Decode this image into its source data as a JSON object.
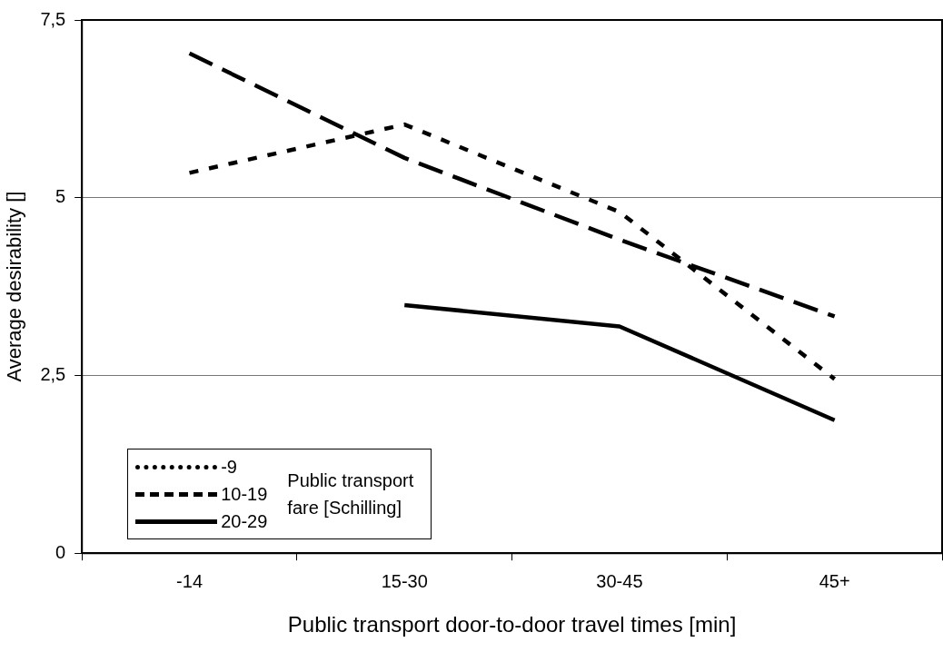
{
  "chart_data": {
    "type": "line",
    "xlabel": "Public transport door-to-door travel times [min]",
    "ylabel": "Average desirability []",
    "legend_title": "Public transport fare [Schilling]",
    "categories": [
      "-14",
      "15-30",
      "30-45",
      "45+"
    ],
    "series": [
      {
        "name": "-9",
        "color": "#000000",
        "line_style": "dotted",
        "values": [
          5.35,
          6.03,
          4.8,
          2.45
        ]
      },
      {
        "name": "10-19",
        "color": "#000000",
        "line_style": "dashed",
        "values": [
          7.03,
          5.56,
          4.41,
          3.33
        ]
      },
      {
        "name": "20-29",
        "color": "#000000",
        "line_style": "solid",
        "values": [
          null,
          3.49,
          3.19,
          1.87
        ]
      }
    ],
    "ylim": [
      0,
      7.5
    ],
    "yticks": [
      {
        "value": 0,
        "label": "0"
      },
      {
        "value": 2.5,
        "label": "2,5"
      },
      {
        "value": 5,
        "label": "5"
      },
      {
        "value": 7.5,
        "label": "7,5"
      }
    ],
    "grid": "y",
    "legend": "bottom left",
    "marker": "none"
  }
}
